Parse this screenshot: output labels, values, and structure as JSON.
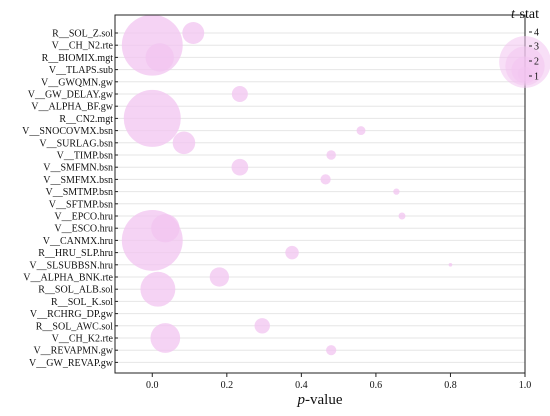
{
  "chart_data": {
    "type": "scatter",
    "xlabel_italic": "p",
    "xlabel_rest": "-value",
    "xlim": [
      -0.1,
      1.0
    ],
    "xticks": [
      0.0,
      0.2,
      0.4,
      0.6,
      0.8,
      1.0
    ],
    "xtick_labels": [
      "0.0",
      "0.2",
      "0.4",
      "0.6",
      "0.8",
      "1.0"
    ],
    "grid": "horizontal",
    "marker_color": "#f2c4f0",
    "categories": [
      "R__SOL_Z.sol",
      "V__CH_N2.rte",
      "R__BIOMIX.mgt",
      "V__TLAPS.sub",
      "V__GWQMN.gw",
      "V__GW_DELAY.gw",
      "V__ALPHA_BF.gw",
      "R__CN2.mgt",
      "V__SNOCOVMX.bsn",
      "V__SURLAG.bsn",
      "V__TIMP.bsn",
      "V__SMFMN.bsn",
      "V__SMFMX.bsn",
      "V__SMTMP.bsn",
      "V__SFTMP.bsn",
      "V__EPCO.hru",
      "V__ESCO.hru",
      "V__CANMX.hru",
      "R__HRU_SLP.hru",
      "V__SLSUBBSN.hru",
      "V__ALPHA_BNK.rte",
      "R__SOL_ALB.sol",
      "R__SOL_K.sol",
      "V__RCHRG_DP.gw",
      "R__SOL_AWC.sol",
      "V__CH_K2.rte",
      "V__REVAPMN.gw",
      "V__GW_REVAP.gw"
    ],
    "p_values": [
      0.11,
      0.0,
      0.02,
      0.03,
      0.0,
      0.235,
      0.3,
      0.0,
      0.56,
      0.085,
      0.48,
      0.235,
      0.465,
      0.655,
      0.46,
      0.67,
      0.035,
      0.0,
      0.375,
      0.8,
      0.18,
      0.015,
      0.91,
      0.73,
      0.295,
      0.035,
      0.48,
      0.44
    ],
    "t_stat": [
      1.5,
      4.5,
      2.0,
      0.0,
      0.0,
      1.05,
      0.0,
      4.2,
      0.5,
      1.55,
      0.55,
      1.1,
      0.6,
      0.3,
      0.0,
      0.35,
      2.0,
      4.5,
      0.85,
      0.1,
      1.3,
      2.5,
      0.0,
      0.0,
      1.0,
      2.1,
      0.6,
      0.0
    ],
    "size_legend": {
      "title_italic": "t",
      "title_rest": "-stat",
      "ticks": [
        "1",
        "2",
        "3",
        "4"
      ]
    }
  }
}
